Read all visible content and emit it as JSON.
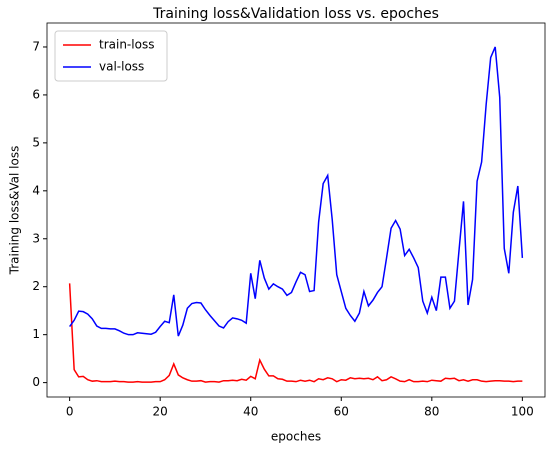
{
  "chart_data": {
    "type": "line",
    "title": "Training loss&Validation loss vs. epoches",
    "x_label": "epoches",
    "y_label": "Training loss&Val loss",
    "x": [
      0,
      1,
      2,
      3,
      4,
      5,
      6,
      7,
      8,
      9,
      10,
      11,
      12,
      13,
      14,
      15,
      16,
      17,
      18,
      19,
      20,
      21,
      22,
      23,
      24,
      25,
      26,
      27,
      28,
      29,
      30,
      31,
      32,
      33,
      34,
      35,
      36,
      37,
      38,
      39,
      40,
      41,
      42,
      43,
      44,
      45,
      46,
      47,
      48,
      49,
      50,
      51,
      52,
      53,
      54,
      55,
      56,
      57,
      58,
      59,
      60,
      61,
      62,
      63,
      64,
      65,
      66,
      67,
      68,
      69,
      70,
      71,
      72,
      73,
      74,
      75,
      76,
      77,
      78,
      79,
      80,
      81,
      82,
      83,
      84,
      85,
      86,
      87,
      88,
      89,
      90,
      91,
      92,
      93,
      94,
      95,
      96,
      97,
      98,
      99,
      100
    ],
    "series": [
      {
        "name": "train-loss",
        "color": "#ff0000",
        "values": [
          2.07,
          0.27,
          0.12,
          0.13,
          0.06,
          0.03,
          0.04,
          0.02,
          0.02,
          0.02,
          0.03,
          0.02,
          0.02,
          0.01,
          0.01,
          0.02,
          0.01,
          0.01,
          0.01,
          0.02,
          0.02,
          0.06,
          0.15,
          0.39,
          0.16,
          0.1,
          0.06,
          0.03,
          0.03,
          0.04,
          0.01,
          0.02,
          0.02,
          0.01,
          0.04,
          0.04,
          0.05,
          0.04,
          0.07,
          0.05,
          0.13,
          0.08,
          0.47,
          0.28,
          0.14,
          0.14,
          0.08,
          0.07,
          0.03,
          0.03,
          0.02,
          0.05,
          0.03,
          0.05,
          0.02,
          0.08,
          0.06,
          0.1,
          0.08,
          0.02,
          0.06,
          0.05,
          0.1,
          0.08,
          0.09,
          0.08,
          0.09,
          0.06,
          0.12,
          0.04,
          0.06,
          0.12,
          0.08,
          0.03,
          0.02,
          0.06,
          0.02,
          0.02,
          0.03,
          0.02,
          0.05,
          0.04,
          0.03,
          0.09,
          0.08,
          0.09,
          0.04,
          0.06,
          0.03,
          0.06,
          0.06,
          0.03,
          0.02,
          0.03,
          0.04,
          0.04,
          0.03,
          0.03,
          0.02,
          0.03,
          0.03
        ]
      },
      {
        "name": "val-loss",
        "color": "#0000ff",
        "values": [
          1.17,
          1.3,
          1.49,
          1.48,
          1.43,
          1.33,
          1.18,
          1.13,
          1.13,
          1.12,
          1.12,
          1.08,
          1.03,
          1.0,
          1.0,
          1.04,
          1.03,
          1.02,
          1.01,
          1.05,
          1.17,
          1.28,
          1.25,
          1.83,
          0.97,
          1.2,
          1.55,
          1.65,
          1.67,
          1.66,
          1.52,
          1.4,
          1.29,
          1.18,
          1.14,
          1.27,
          1.35,
          1.33,
          1.3,
          1.24,
          2.28,
          1.75,
          2.55,
          2.18,
          1.95,
          2.06,
          2.0,
          1.95,
          1.82,
          1.88,
          2.1,
          2.3,
          2.25,
          1.9,
          1.92,
          3.35,
          4.15,
          4.32,
          3.4,
          2.25,
          1.9,
          1.55,
          1.4,
          1.28,
          1.45,
          1.9,
          1.6,
          1.72,
          1.88,
          2.0,
          2.6,
          3.22,
          3.38,
          3.2,
          2.65,
          2.78,
          2.6,
          2.4,
          1.7,
          1.45,
          1.78,
          1.5,
          2.2,
          2.2,
          1.55,
          1.7,
          2.75,
          3.78,
          1.62,
          2.15,
          4.2,
          4.6,
          5.8,
          6.78,
          7.0,
          5.95,
          2.8,
          2.28,
          3.55,
          4.1,
          2.6
        ]
      }
    ],
    "xlim": [
      -5,
      105
    ],
    "ylim": [
      -0.3,
      7.5
    ],
    "xticks": [
      0,
      20,
      40,
      60,
      80,
      100
    ],
    "yticks": [
      0,
      1,
      2,
      3,
      4,
      5,
      6,
      7
    ],
    "legend": "upper left"
  }
}
